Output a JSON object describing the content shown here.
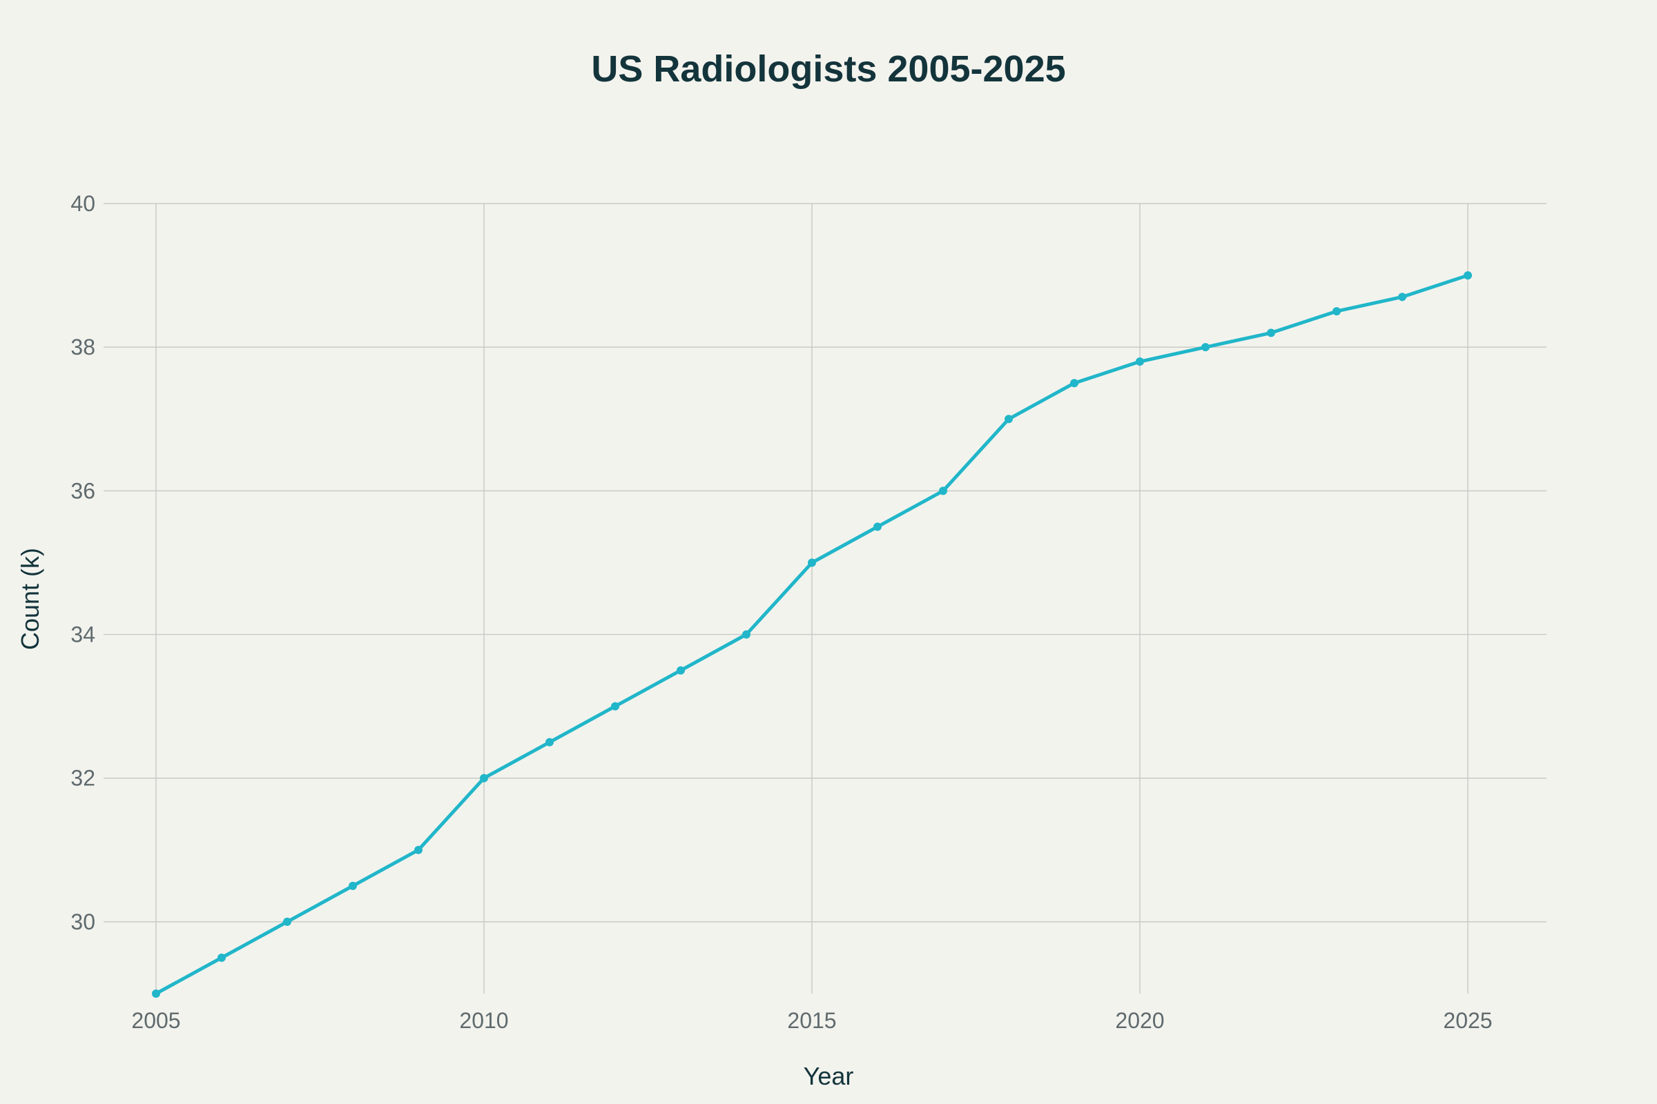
{
  "chart_data": {
    "type": "line",
    "title": "US Radiologists 2005-2025",
    "xlabel": "Year",
    "ylabel": "Count (k)",
    "xlim": [
      2004.2,
      2026.2
    ],
    "ylim": [
      29,
      40
    ],
    "x_ticks": [
      2005,
      2010,
      2015,
      2020,
      2025
    ],
    "y_ticks": [
      30,
      32,
      34,
      36,
      38,
      40
    ],
    "grid": true,
    "legend": "none",
    "line_color": "#21b6c9",
    "series": [
      {
        "x": [
          2005,
          2006,
          2007,
          2008,
          2009,
          2010,
          2011,
          2012,
          2013,
          2014,
          2015,
          2016,
          2017,
          2018,
          2019,
          2020,
          2021,
          2022,
          2023,
          2024,
          2025
        ],
        "values": [
          29,
          29.5,
          30,
          30.5,
          31,
          32,
          32.5,
          33,
          33.5,
          34,
          35,
          35.5,
          36,
          37,
          37.5,
          37.8,
          38,
          38.2,
          38.5,
          38.7,
          39
        ]
      }
    ]
  }
}
